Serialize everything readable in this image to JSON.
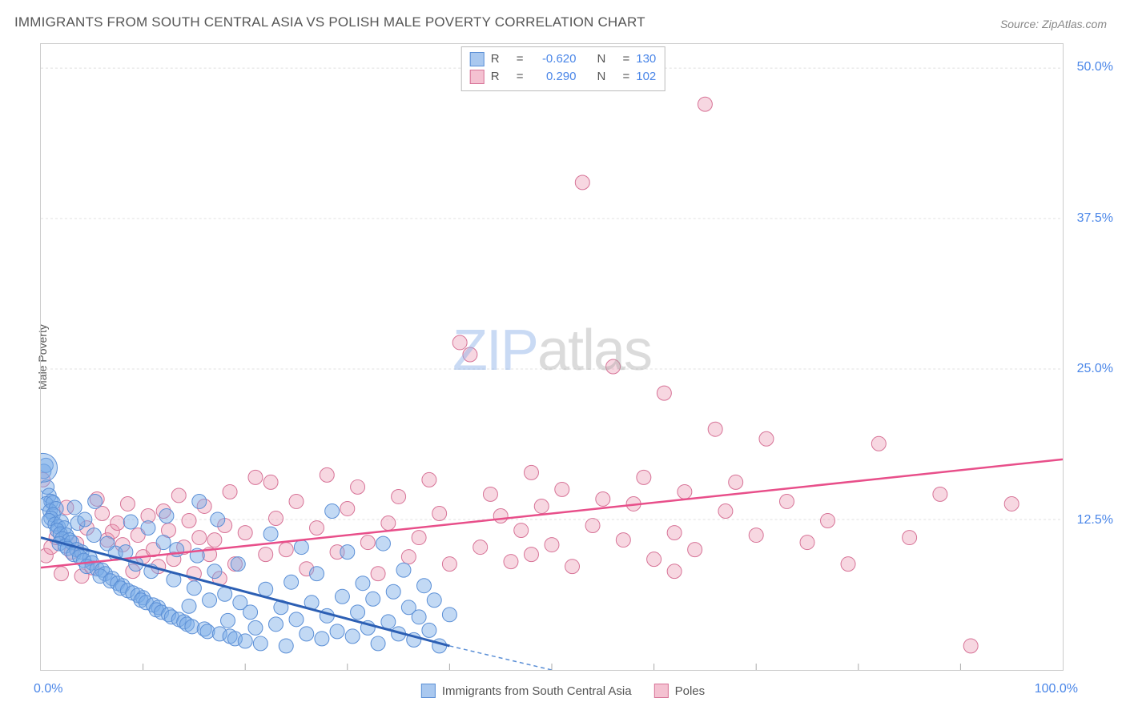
{
  "title": "IMMIGRANTS FROM SOUTH CENTRAL ASIA VS POLISH MALE POVERTY CORRELATION CHART",
  "source": "Source: ZipAtlas.com",
  "y_axis_label": "Male Poverty",
  "watermark_part1": "ZIP",
  "watermark_part2": "atlas",
  "chart": {
    "type": "scatter",
    "xlim": [
      0,
      100
    ],
    "ylim": [
      0,
      52
    ],
    "x_tick_labels": [
      "0.0%",
      "100.0%"
    ],
    "y_tick_labels": [
      "12.5%",
      "25.0%",
      "37.5%",
      "50.0%"
    ],
    "y_tick_values": [
      12.5,
      25.0,
      37.5,
      50.0
    ],
    "x_minor_ticks": [
      10,
      20,
      30,
      40,
      50,
      60,
      70,
      80,
      90
    ],
    "background_color": "#ffffff",
    "grid_color": "#e0e0e0",
    "grid_dash": "3,3",
    "axis_color": "#cccccc",
    "tick_color": "#aaaaaa",
    "label_color": "#4a86e8",
    "title_color": "#555555",
    "title_fontsize": 17,
    "label_fontsize": 16,
    "axis_label_fontsize": 14
  },
  "series": [
    {
      "name": "Immigrants from South Central Asia",
      "fill": "rgba(120,170,230,0.45)",
      "stroke": "#5b8fd6",
      "swatch_fill": "#a9c8ef",
      "swatch_stroke": "#5b8fd6",
      "trend_color": "#2c5fb4",
      "trend_width": 3,
      "trend_dash_color": "#5b8fd6",
      "stats": {
        "R": "-0.620",
        "N": "130"
      },
      "trend": {
        "x1": 0,
        "y1": 11.0,
        "x2_solid": 40,
        "y2_solid": 2.0,
        "x2_dash": 50,
        "y2_dash": 0.0
      },
      "marker_radius": 9,
      "points": [
        [
          0.3,
          16.5
        ],
        [
          0.5,
          17.0
        ],
        [
          0.6,
          15.2
        ],
        [
          0.8,
          14.5
        ],
        [
          1.0,
          14.0
        ],
        [
          0.5,
          13.8
        ],
        [
          1.2,
          13.9
        ],
        [
          0.9,
          13.2
        ],
        [
          1.5,
          13.4
        ],
        [
          1.2,
          12.9
        ],
        [
          1.0,
          12.6
        ],
        [
          0.8,
          12.4
        ],
        [
          1.4,
          12.1
        ],
        [
          1.7,
          11.9
        ],
        [
          2.0,
          12.3
        ],
        [
          2.3,
          11.8
        ],
        [
          1.6,
          11.6
        ],
        [
          1.9,
          11.3
        ],
        [
          2.5,
          11.2
        ],
        [
          2.1,
          10.9
        ],
        [
          2.8,
          10.8
        ],
        [
          1.8,
          10.5
        ],
        [
          2.4,
          10.3
        ],
        [
          3.0,
          10.6
        ],
        [
          3.3,
          13.5
        ],
        [
          2.6,
          10.1
        ],
        [
          3.5,
          10.0
        ],
        [
          3.2,
          9.6
        ],
        [
          4.0,
          9.8
        ],
        [
          3.8,
          9.4
        ],
        [
          3.6,
          12.2
        ],
        [
          4.3,
          12.5
        ],
        [
          4.8,
          9.3
        ],
        [
          4.2,
          9.1
        ],
        [
          5.0,
          8.9
        ],
        [
          5.3,
          14.0
        ],
        [
          4.5,
          8.6
        ],
        [
          5.5,
          8.4
        ],
        [
          5.2,
          11.2
        ],
        [
          6.0,
          8.3
        ],
        [
          6.3,
          8.0
        ],
        [
          5.8,
          7.8
        ],
        [
          6.5,
          10.5
        ],
        [
          7.0,
          7.6
        ],
        [
          6.8,
          7.4
        ],
        [
          7.5,
          7.2
        ],
        [
          7.3,
          9.7
        ],
        [
          8.0,
          7.0
        ],
        [
          7.8,
          6.8
        ],
        [
          8.5,
          6.6
        ],
        [
          8.3,
          9.8
        ],
        [
          9.0,
          6.4
        ],
        [
          8.8,
          12.3
        ],
        [
          9.5,
          6.2
        ],
        [
          9.3,
          8.8
        ],
        [
          10.0,
          6.0
        ],
        [
          9.8,
          5.8
        ],
        [
          10.5,
          11.8
        ],
        [
          10.3,
          5.6
        ],
        [
          11.0,
          5.4
        ],
        [
          10.8,
          8.2
        ],
        [
          11.5,
          5.2
        ],
        [
          11.3,
          5.0
        ],
        [
          12.0,
          10.6
        ],
        [
          11.8,
          4.8
        ],
        [
          12.5,
          4.6
        ],
        [
          12.3,
          12.8
        ],
        [
          13.0,
          7.5
        ],
        [
          12.8,
          4.4
        ],
        [
          13.5,
          4.2
        ],
        [
          13.3,
          10.0
        ],
        [
          14.0,
          4.0
        ],
        [
          14.5,
          5.3
        ],
        [
          14.3,
          3.8
        ],
        [
          15.0,
          6.8
        ],
        [
          14.8,
          3.6
        ],
        [
          15.5,
          14.0
        ],
        [
          15.3,
          9.5
        ],
        [
          16.0,
          3.4
        ],
        [
          16.5,
          5.8
        ],
        [
          16.3,
          3.2
        ],
        [
          17.0,
          8.2
        ],
        [
          17.5,
          3.0
        ],
        [
          17.3,
          12.5
        ],
        [
          18.0,
          6.3
        ],
        [
          18.5,
          2.8
        ],
        [
          18.3,
          4.1
        ],
        [
          19.0,
          2.6
        ],
        [
          19.5,
          5.6
        ],
        [
          19.3,
          8.8
        ],
        [
          20.0,
          2.4
        ],
        [
          20.5,
          4.8
        ],
        [
          21.0,
          3.5
        ],
        [
          21.5,
          2.2
        ],
        [
          22.0,
          6.7
        ],
        [
          22.5,
          11.3
        ],
        [
          23.0,
          3.8
        ],
        [
          23.5,
          5.2
        ],
        [
          24.0,
          2.0
        ],
        [
          24.5,
          7.3
        ],
        [
          25.0,
          4.2
        ],
        [
          25.5,
          10.2
        ],
        [
          26.0,
          3.0
        ],
        [
          26.5,
          5.6
        ],
        [
          27.0,
          8.0
        ],
        [
          27.5,
          2.6
        ],
        [
          28.0,
          4.5
        ],
        [
          28.5,
          13.2
        ],
        [
          29.0,
          3.2
        ],
        [
          29.5,
          6.1
        ],
        [
          30.0,
          9.8
        ],
        [
          30.5,
          2.8
        ],
        [
          31.0,
          4.8
        ],
        [
          31.5,
          7.2
        ],
        [
          32.0,
          3.5
        ],
        [
          32.5,
          5.9
        ],
        [
          33.0,
          2.2
        ],
        [
          33.5,
          10.5
        ],
        [
          34.0,
          4.0
        ],
        [
          34.5,
          6.5
        ],
        [
          35.0,
          3.0
        ],
        [
          35.5,
          8.3
        ],
        [
          36.0,
          5.2
        ],
        [
          36.5,
          2.5
        ],
        [
          37.0,
          4.4
        ],
        [
          37.5,
          7.0
        ],
        [
          38.0,
          3.3
        ],
        [
          38.5,
          5.8
        ],
        [
          39.0,
          2.0
        ],
        [
          40.0,
          4.6
        ]
      ]
    },
    {
      "name": "Poles",
      "fill": "rgba(235,150,175,0.38)",
      "stroke": "#d77397",
      "swatch_fill": "#f4c1d1",
      "swatch_stroke": "#d77397",
      "trend_color": "#e84f8a",
      "trend_width": 2.5,
      "stats": {
        "R": "0.290",
        "N": "102"
      },
      "trend": {
        "x1": 0,
        "y1": 8.5,
        "x2_solid": 100,
        "y2_solid": 17.5
      },
      "marker_radius": 9,
      "points": [
        [
          0.2,
          15.8
        ],
        [
          0.5,
          9.5
        ],
        [
          1.0,
          10.2
        ],
        [
          1.5,
          11.0
        ],
        [
          2.0,
          8.0
        ],
        [
          2.5,
          13.5
        ],
        [
          3.0,
          9.8
        ],
        [
          3.5,
          10.5
        ],
        [
          4.0,
          7.8
        ],
        [
          4.5,
          11.8
        ],
        [
          5.0,
          8.5
        ],
        [
          5.5,
          14.2
        ],
        [
          6.0,
          13.0
        ],
        [
          6.5,
          10.8
        ],
        [
          7.0,
          11.5
        ],
        [
          7.5,
          12.2
        ],
        [
          8.0,
          10.4
        ],
        [
          8.5,
          13.8
        ],
        [
          9.0,
          8.2
        ],
        [
          9.5,
          11.2
        ],
        [
          10.0,
          9.4
        ],
        [
          10.5,
          12.8
        ],
        [
          11.0,
          10.0
        ],
        [
          11.5,
          8.6
        ],
        [
          12.0,
          13.2
        ],
        [
          12.5,
          11.6
        ],
        [
          13.0,
          9.2
        ],
        [
          13.5,
          14.5
        ],
        [
          14.0,
          10.2
        ],
        [
          14.5,
          12.4
        ],
        [
          15.0,
          8.0
        ],
        [
          15.5,
          11.0
        ],
        [
          16.0,
          13.6
        ],
        [
          16.5,
          9.6
        ],
        [
          17.0,
          10.8
        ],
        [
          17.5,
          7.6
        ],
        [
          18.0,
          12.0
        ],
        [
          18.5,
          14.8
        ],
        [
          19.0,
          8.8
        ],
        [
          20.0,
          11.4
        ],
        [
          21.0,
          16.0
        ],
        [
          22.0,
          9.6
        ],
        [
          22.5,
          15.6
        ],
        [
          23.0,
          12.6
        ],
        [
          24.0,
          10.0
        ],
        [
          25.0,
          14.0
        ],
        [
          26.0,
          8.4
        ],
        [
          27.0,
          11.8
        ],
        [
          28.0,
          16.2
        ],
        [
          29.0,
          9.8
        ],
        [
          30.0,
          13.4
        ],
        [
          31.0,
          15.2
        ],
        [
          32.0,
          10.6
        ],
        [
          33.0,
          8.0
        ],
        [
          34.0,
          12.2
        ],
        [
          35.0,
          14.4
        ],
        [
          36.0,
          9.4
        ],
        [
          37.0,
          11.0
        ],
        [
          38.0,
          15.8
        ],
        [
          39.0,
          13.0
        ],
        [
          40.0,
          8.8
        ],
        [
          41.0,
          27.2
        ],
        [
          42.0,
          26.2
        ],
        [
          43.0,
          10.2
        ],
        [
          44.0,
          14.6
        ],
        [
          45.0,
          12.8
        ],
        [
          46.0,
          9.0
        ],
        [
          47.0,
          11.6
        ],
        [
          48.0,
          16.4
        ],
        [
          49.0,
          13.6
        ],
        [
          50.0,
          10.4
        ],
        [
          51.0,
          15.0
        ],
        [
          52.0,
          8.6
        ],
        [
          53.0,
          40.5
        ],
        [
          54.0,
          12.0
        ],
        [
          55.0,
          14.2
        ],
        [
          56.0,
          25.2
        ],
        [
          57.0,
          10.8
        ],
        [
          58.0,
          13.8
        ],
        [
          59.0,
          16.0
        ],
        [
          60.0,
          9.2
        ],
        [
          61.0,
          23.0
        ],
        [
          62.0,
          11.4
        ],
        [
          63.0,
          14.8
        ],
        [
          64.0,
          10.0
        ],
        [
          65.0,
          47.0
        ],
        [
          66.0,
          20.0
        ],
        [
          67.0,
          13.2
        ],
        [
          68.0,
          15.6
        ],
        [
          70.0,
          11.2
        ],
        [
          71.0,
          19.2
        ],
        [
          73.0,
          14.0
        ],
        [
          75.0,
          10.6
        ],
        [
          77.0,
          12.4
        ],
        [
          79.0,
          8.8
        ],
        [
          82.0,
          18.8
        ],
        [
          85.0,
          11.0
        ],
        [
          88.0,
          14.6
        ],
        [
          91.0,
          2.0
        ],
        [
          95.0,
          13.8
        ],
        [
          62.0,
          8.2
        ],
        [
          48.0,
          9.6
        ]
      ]
    }
  ],
  "bottom_legend": [
    {
      "label": "Immigrants from South Central Asia",
      "series_index": 0
    },
    {
      "label": "Poles",
      "series_index": 1
    }
  ]
}
